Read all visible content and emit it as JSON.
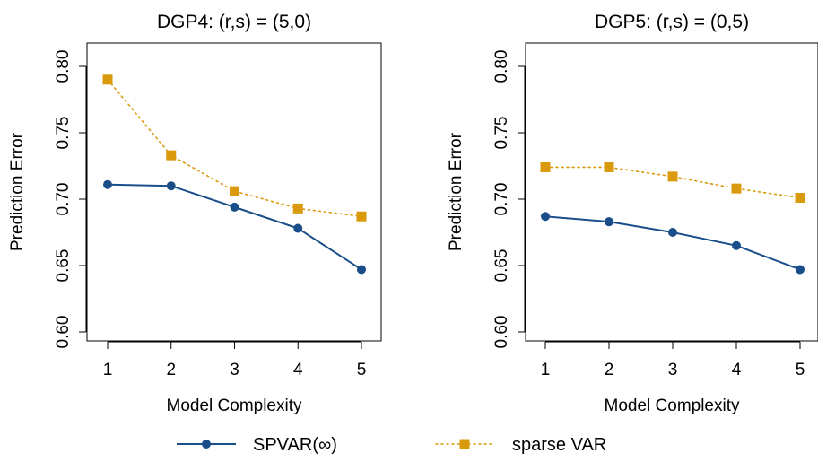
{
  "colors": {
    "spvar": "#1a4e8a",
    "sparse": "#d99a0e",
    "axis": "#000000"
  },
  "legend": {
    "placement": "bottom",
    "items": [
      {
        "label": "SPVAR(∞)",
        "style": "solid",
        "marker": "circle",
        "color": "#1a4e8a"
      },
      {
        "label": "sparse VAR",
        "style": "dotted",
        "marker": "square",
        "color": "#d99a0e"
      }
    ]
  },
  "chart_data": [
    {
      "type": "line",
      "title": "DGP4: (r,s) = (5,0)",
      "xlabel": "Model Complexity",
      "ylabel": "Prediction Error",
      "x": [
        1,
        2,
        3,
        4,
        5
      ],
      "xticks": [
        "1",
        "2",
        "3",
        "4",
        "5"
      ],
      "yticks": [
        "0.60",
        "0.65",
        "0.70",
        "0.75",
        "0.80"
      ],
      "ylim": [
        0.6,
        0.8
      ],
      "grid": false,
      "series": [
        {
          "name": "SPVAR(∞)",
          "values": [
            0.711,
            0.71,
            0.694,
            0.678,
            0.647
          ]
        },
        {
          "name": "sparse VAR",
          "values": [
            0.79,
            0.733,
            0.706,
            0.693,
            0.687
          ]
        }
      ]
    },
    {
      "type": "line",
      "title": "DGP5: (r,s) = (0,5)",
      "xlabel": "Model Complexity",
      "ylabel": "Prediction Error",
      "x": [
        1,
        2,
        3,
        4,
        5
      ],
      "xticks": [
        "1",
        "2",
        "3",
        "4",
        "5"
      ],
      "yticks": [
        "0.60",
        "0.65",
        "0.70",
        "0.75",
        "0.80"
      ],
      "ylim": [
        0.6,
        0.8
      ],
      "grid": false,
      "series": [
        {
          "name": "SPVAR(∞)",
          "values": [
            0.687,
            0.683,
            0.675,
            0.665,
            0.647
          ]
        },
        {
          "name": "sparse VAR",
          "values": [
            0.724,
            0.724,
            0.717,
            0.708,
            0.701
          ]
        }
      ]
    }
  ]
}
